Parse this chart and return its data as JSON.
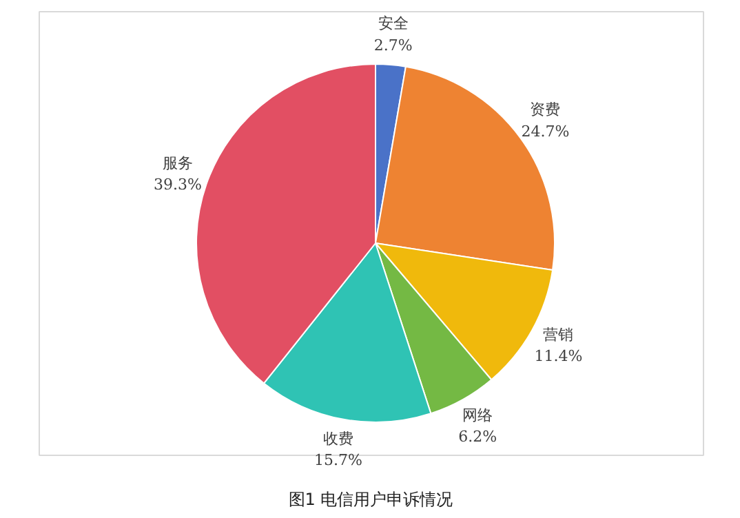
{
  "chart_data": {
    "type": "pie",
    "categories": [
      "安全",
      "资费",
      "营销",
      "网络",
      "收费",
      "服务"
    ],
    "values": [
      2.7,
      24.7,
      11.4,
      6.2,
      15.7,
      39.3
    ],
    "value_labels": [
      "2.7%",
      "24.7%",
      "11.4%",
      "6.2%",
      "15.7%",
      "39.3%"
    ],
    "colors": [
      "#4a72c8",
      "#ee8332",
      "#f0b90c",
      "#74b944",
      "#2fc3b4",
      "#e24f63"
    ],
    "annotations": [
      "图1 电信用户申诉情况"
    ]
  }
}
